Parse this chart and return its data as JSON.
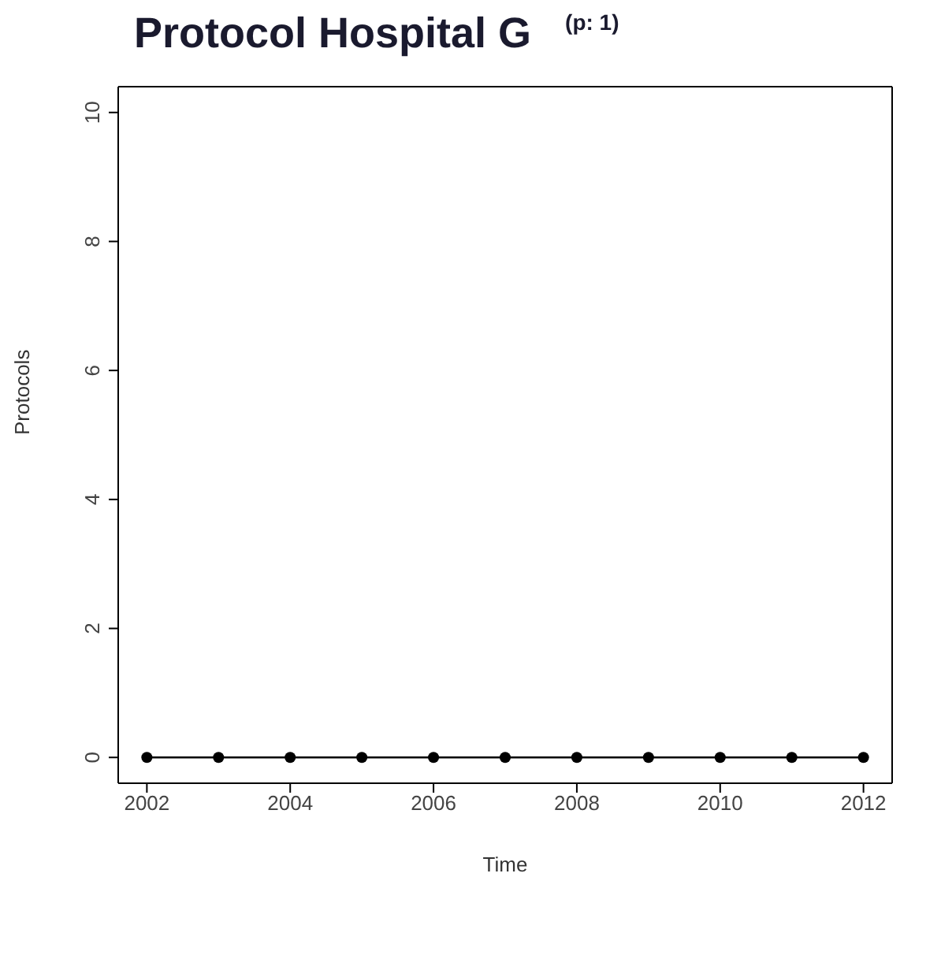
{
  "chart_data": {
    "type": "line",
    "title": "Protocol Hospital G $^{(p: 1)}$",
    "xlabel": "Time",
    "ylabel": "Protocols",
    "x": [
      2002,
      2003,
      2004,
      2005,
      2006,
      2007,
      2008,
      2009,
      2010,
      2011,
      2012
    ],
    "series": [
      {
        "color": "#000000",
        "values": [
          0,
          0,
          0,
          0,
          0,
          0,
          0,
          0,
          0,
          0,
          0
        ]
      }
    ],
    "xlim": [
      2001.6,
      2012.4
    ],
    "xticks": [
      2002,
      2004,
      2006,
      2008,
      2010,
      2012
    ],
    "ylim": [
      -0.4,
      10.4
    ],
    "yticks": [
      0,
      2,
      4,
      6,
      8,
      10
    ],
    "grid": false,
    "legend": false,
    "marker": "circle",
    "line_style": "solid"
  }
}
